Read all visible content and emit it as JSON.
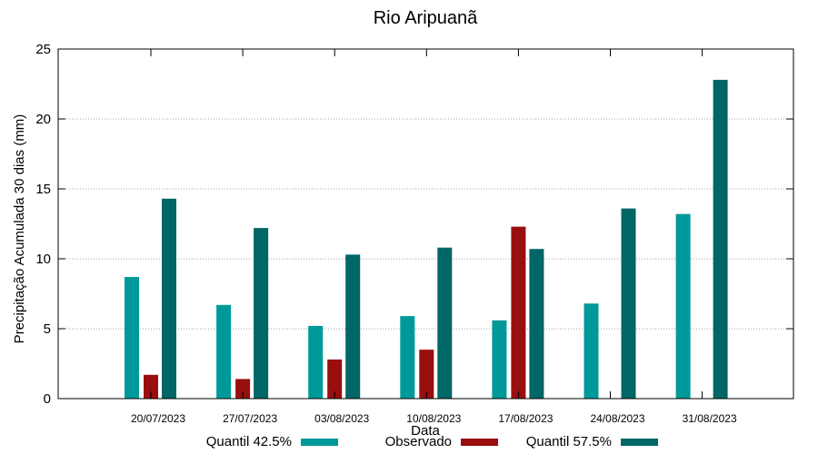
{
  "chart_data": {
    "type": "bar",
    "title": "Rio Aripuanã",
    "xlabel": "Data",
    "ylabel": "Precipitação Acumulada 30 dias (mm)",
    "ylim": [
      0,
      25
    ],
    "yticks": [
      0,
      5,
      10,
      15,
      20,
      25
    ],
    "grid": "horizontal dotted",
    "legend_position": "bottom",
    "categories": [
      "20/07/2023",
      "27/07/2023",
      "03/08/2023",
      "10/08/2023",
      "17/08/2023",
      "24/08/2023",
      "31/08/2023"
    ],
    "series": [
      {
        "name": "Quantil 42.5%",
        "color": "#009999",
        "values": [
          8.7,
          6.7,
          5.2,
          5.9,
          5.6,
          6.8,
          13.2
        ]
      },
      {
        "name": "Observado",
        "color": "#990f0f",
        "values": [
          1.7,
          1.4,
          2.8,
          3.5,
          12.3,
          null,
          null
        ]
      },
      {
        "name": "Quantil 57.5%",
        "color": "#006666",
        "values": [
          14.3,
          12.2,
          10.3,
          10.8,
          10.7,
          13.6,
          22.8
        ]
      }
    ]
  }
}
